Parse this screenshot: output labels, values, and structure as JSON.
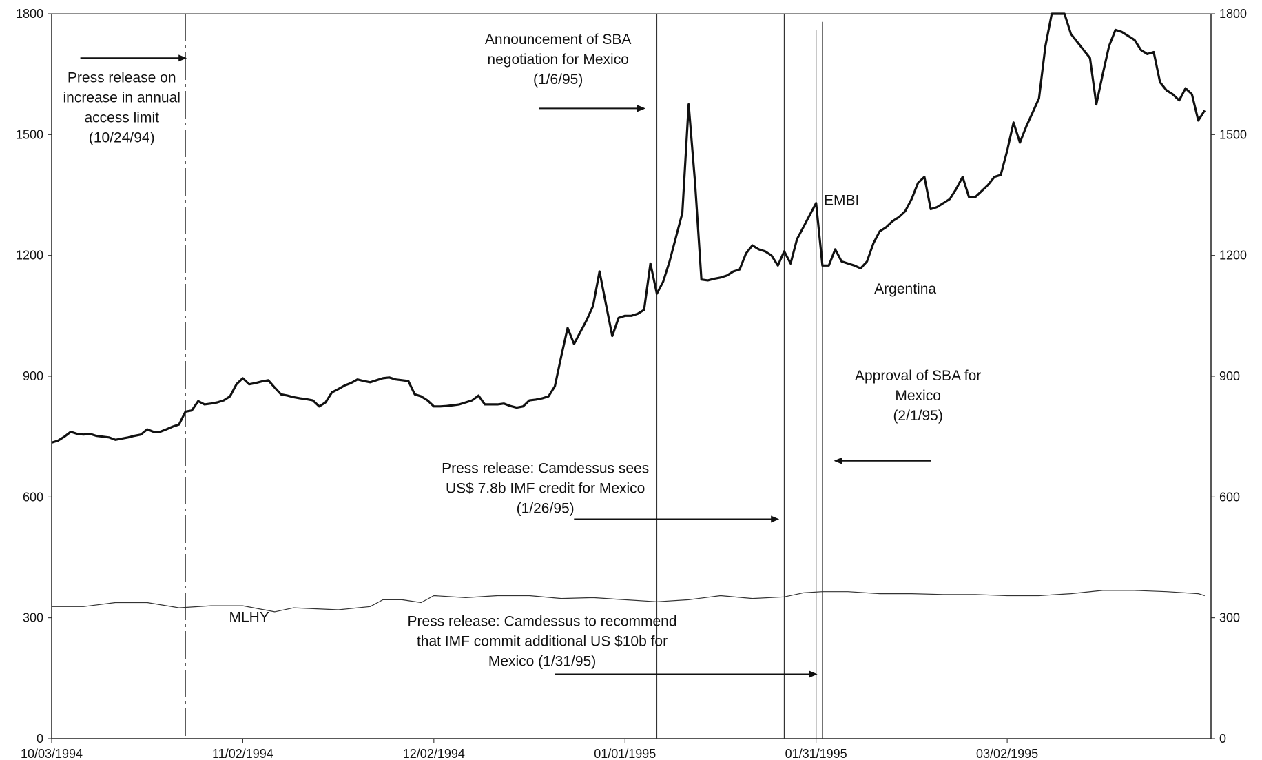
{
  "chart_data": {
    "type": "line",
    "ylim": [
      0,
      1800
    ],
    "y_ticks": [
      0,
      300,
      600,
      900,
      1200,
      1500,
      1800
    ],
    "x_tick_labels": [
      "10/03/1994",
      "11/02/1994",
      "12/02/1994",
      "01/01/1995",
      "01/31/1995",
      "03/02/1995"
    ],
    "x_range_days": [
      0,
      178
    ],
    "x_tick_days": [
      0,
      30,
      60,
      90,
      120,
      150
    ],
    "grid": false,
    "series": [
      {
        "name": "EMBI",
        "style": "thick",
        "color": "#111111",
        "label_at": [
          124,
          1325
        ],
        "points": [
          [
            0,
            735
          ],
          [
            1,
            740
          ],
          [
            2,
            750
          ],
          [
            3,
            762
          ],
          [
            4,
            757
          ],
          [
            5,
            755
          ],
          [
            6,
            757
          ],
          [
            7,
            752
          ],
          [
            8,
            750
          ],
          [
            9,
            748
          ],
          [
            10,
            742
          ],
          [
            11,
            745
          ],
          [
            12,
            748
          ],
          [
            13,
            752
          ],
          [
            14,
            755
          ],
          [
            15,
            768
          ],
          [
            16,
            762
          ],
          [
            17,
            762
          ],
          [
            18,
            768
          ],
          [
            19,
            775
          ],
          [
            20,
            780
          ],
          [
            21,
            812
          ],
          [
            22,
            815
          ],
          [
            23,
            838
          ],
          [
            24,
            830
          ],
          [
            25,
            832
          ],
          [
            26,
            835
          ],
          [
            27,
            840
          ],
          [
            28,
            850
          ],
          [
            29,
            880
          ],
          [
            30,
            895
          ],
          [
            31,
            880
          ],
          [
            32,
            883
          ],
          [
            33,
            887
          ],
          [
            34,
            890
          ],
          [
            35,
            872
          ],
          [
            36,
            855
          ],
          [
            37,
            852
          ],
          [
            38,
            848
          ],
          [
            39,
            845
          ],
          [
            40,
            843
          ],
          [
            41,
            840
          ],
          [
            42,
            825
          ],
          [
            43,
            835
          ],
          [
            44,
            860
          ],
          [
            45,
            868
          ],
          [
            46,
            877
          ],
          [
            47,
            883
          ],
          [
            48,
            892
          ],
          [
            49,
            888
          ],
          [
            50,
            885
          ],
          [
            51,
            890
          ],
          [
            52,
            895
          ],
          [
            53,
            897
          ],
          [
            54,
            892
          ],
          [
            55,
            890
          ],
          [
            56,
            888
          ],
          [
            57,
            855
          ],
          [
            58,
            850
          ],
          [
            59,
            840
          ],
          [
            60,
            825
          ],
          [
            61,
            825
          ],
          [
            62,
            826
          ],
          [
            63,
            828
          ],
          [
            64,
            830
          ],
          [
            65,
            835
          ],
          [
            66,
            840
          ],
          [
            67,
            852
          ],
          [
            68,
            830
          ],
          [
            69,
            830
          ],
          [
            70,
            830
          ],
          [
            71,
            832
          ],
          [
            72,
            826
          ],
          [
            73,
            822
          ],
          [
            74,
            825
          ],
          [
            75,
            840
          ],
          [
            76,
            842
          ],
          [
            77,
            845
          ],
          [
            78,
            850
          ],
          [
            79,
            875
          ],
          [
            80,
            950
          ],
          [
            81,
            1020
          ],
          [
            82,
            980
          ],
          [
            83,
            1010
          ],
          [
            84,
            1040
          ],
          [
            85,
            1075
          ],
          [
            86,
            1160
          ],
          [
            87,
            1080
          ],
          [
            88,
            1000
          ],
          [
            89,
            1045
          ],
          [
            90,
            1050
          ],
          [
            91,
            1050
          ],
          [
            92,
            1055
          ],
          [
            93,
            1065
          ],
          [
            94,
            1180
          ],
          [
            95,
            1105
          ],
          [
            96,
            1135
          ],
          [
            97,
            1185
          ],
          [
            98,
            1245
          ],
          [
            99,
            1305
          ],
          [
            100,
            1575
          ],
          [
            101,
            1380
          ],
          [
            102,
            1140
          ],
          [
            103,
            1138
          ],
          [
            104,
            1142
          ],
          [
            105,
            1145
          ],
          [
            106,
            1150
          ],
          [
            107,
            1160
          ],
          [
            108,
            1165
          ],
          [
            109,
            1205
          ],
          [
            110,
            1225
          ],
          [
            111,
            1215
          ],
          [
            112,
            1210
          ],
          [
            113,
            1200
          ],
          [
            114,
            1175
          ],
          [
            115,
            1210
          ],
          [
            116,
            1180
          ],
          [
            117,
            1240
          ],
          [
            118,
            1270
          ],
          [
            119,
            1300
          ],
          [
            120,
            1330
          ],
          [
            121,
            1175
          ],
          [
            122,
            1175
          ],
          [
            123,
            1215
          ],
          [
            124,
            1185
          ],
          [
            125,
            1180
          ],
          [
            126,
            1175
          ],
          [
            127,
            1168
          ],
          [
            128,
            1185
          ],
          [
            129,
            1230
          ],
          [
            130,
            1260
          ],
          [
            131,
            1270
          ],
          [
            132,
            1285
          ],
          [
            133,
            1295
          ],
          [
            134,
            1310
          ],
          [
            135,
            1340
          ],
          [
            136,
            1380
          ],
          [
            137,
            1395
          ],
          [
            138,
            1315
          ],
          [
            139,
            1320
          ],
          [
            140,
            1330
          ],
          [
            141,
            1340
          ],
          [
            142,
            1365
          ],
          [
            143,
            1395
          ],
          [
            144,
            1345
          ],
          [
            145,
            1345
          ],
          [
            146,
            1360
          ],
          [
            147,
            1375
          ],
          [
            148,
            1395
          ],
          [
            149,
            1400
          ],
          [
            150,
            1460
          ],
          [
            151,
            1530
          ],
          [
            152,
            1480
          ],
          [
            153,
            1520
          ],
          [
            154,
            1555
          ],
          [
            155,
            1590
          ],
          [
            156,
            1720
          ],
          [
            157,
            1830
          ],
          [
            158,
            1830
          ],
          [
            159,
            1880
          ],
          [
            160,
            1750
          ],
          [
            161,
            1730
          ],
          [
            162,
            1710
          ],
          [
            163,
            1690
          ],
          [
            164,
            1575
          ],
          [
            165,
            1650
          ],
          [
            166,
            1720
          ],
          [
            167,
            1760
          ],
          [
            168,
            1755
          ],
          [
            169,
            1745
          ],
          [
            170,
            1735
          ],
          [
            171,
            1710
          ],
          [
            172,
            1700
          ],
          [
            173,
            1705
          ],
          [
            174,
            1630
          ],
          [
            175,
            1610
          ],
          [
            176,
            1600
          ],
          [
            177,
            1585
          ],
          [
            178,
            1615
          ],
          [
            179,
            1600
          ],
          [
            180,
            1535
          ],
          [
            181,
            1560
          ]
        ]
      },
      {
        "name": "MLHY",
        "style": "thin",
        "color": "#333333",
        "label_at": [
          31,
          290
        ],
        "points": [
          [
            0,
            328
          ],
          [
            5,
            328
          ],
          [
            10,
            338
          ],
          [
            15,
            338
          ],
          [
            20,
            325
          ],
          [
            25,
            330
          ],
          [
            30,
            330
          ],
          [
            35,
            315
          ],
          [
            38,
            325
          ],
          [
            45,
            320
          ],
          [
            50,
            328
          ],
          [
            52,
            345
          ],
          [
            55,
            345
          ],
          [
            58,
            338
          ],
          [
            60,
            355
          ],
          [
            65,
            350
          ],
          [
            70,
            355
          ],
          [
            75,
            355
          ],
          [
            80,
            348
          ],
          [
            85,
            350
          ],
          [
            90,
            345
          ],
          [
            95,
            340
          ],
          [
            100,
            345
          ],
          [
            105,
            355
          ],
          [
            110,
            348
          ],
          [
            115,
            352
          ],
          [
            118,
            362
          ],
          [
            121,
            365
          ],
          [
            125,
            365
          ],
          [
            130,
            360
          ],
          [
            135,
            360
          ],
          [
            140,
            358
          ],
          [
            145,
            358
          ],
          [
            150,
            355
          ],
          [
            155,
            355
          ],
          [
            160,
            360
          ],
          [
            165,
            368
          ],
          [
            170,
            368
          ],
          [
            175,
            365
          ],
          [
            180,
            360
          ],
          [
            181,
            355
          ]
        ]
      },
      {
        "name": "Argentina",
        "style": "none",
        "color": "#111111",
        "label_at": [
          134,
          1105
        ],
        "points": []
      }
    ],
    "events": [
      {
        "day": 21,
        "style": "dash-dot",
        "y_top": 1800
      },
      {
        "day": 95,
        "style": "thin",
        "y_top": 1800
      },
      {
        "day": 115,
        "style": "thin",
        "y_top": 1800
      },
      {
        "day": 120,
        "style": "thin",
        "y_top": 1760
      },
      {
        "day": 121,
        "style": "thin",
        "y_top": 1780
      }
    ],
    "annotations": [
      {
        "lines": [
          "Press release on",
          "increase in annual",
          "access limit",
          "(10/24/94)"
        ],
        "text_anchor_day": 11,
        "text_top_y": 1630,
        "arrow_from": [
          4.5,
          1690
        ],
        "arrow_to": [
          21,
          1690
        ]
      },
      {
        "lines": [
          "Announcement of SBA",
          "negotiation for Mexico",
          "(1/6/95)"
        ],
        "text_anchor_day": 79.5,
        "text_top_y": 1725,
        "arrow_from": [
          76.5,
          1565
        ],
        "arrow_to": [
          93,
          1565
        ]
      },
      {
        "lines": [
          "Approval of SBA  for",
          "Mexico",
          "(2/1/95)"
        ],
        "text_anchor_day": 136,
        "text_top_y": 890,
        "arrow_from": [
          138,
          690
        ],
        "arrow_to": [
          123,
          690
        ]
      },
      {
        "lines": [
          "Press release: Camdessus sees",
          "US$ 7.8b IMF credit for Mexico",
          "(1/26/95)"
        ],
        "text_anchor_day": 77.5,
        "text_top_y": 660,
        "arrow_from": [
          82,
          545
        ],
        "arrow_to": [
          114,
          545
        ]
      },
      {
        "lines": [
          "Press release: Camdessus to recommend",
          "that IMF commit additional US $10b for",
          "Mexico (1/31/95)"
        ],
        "text_anchor_day": 77,
        "text_top_y": 280,
        "arrow_from": [
          79,
          160
        ],
        "arrow_to": [
          120,
          160
        ]
      }
    ]
  }
}
